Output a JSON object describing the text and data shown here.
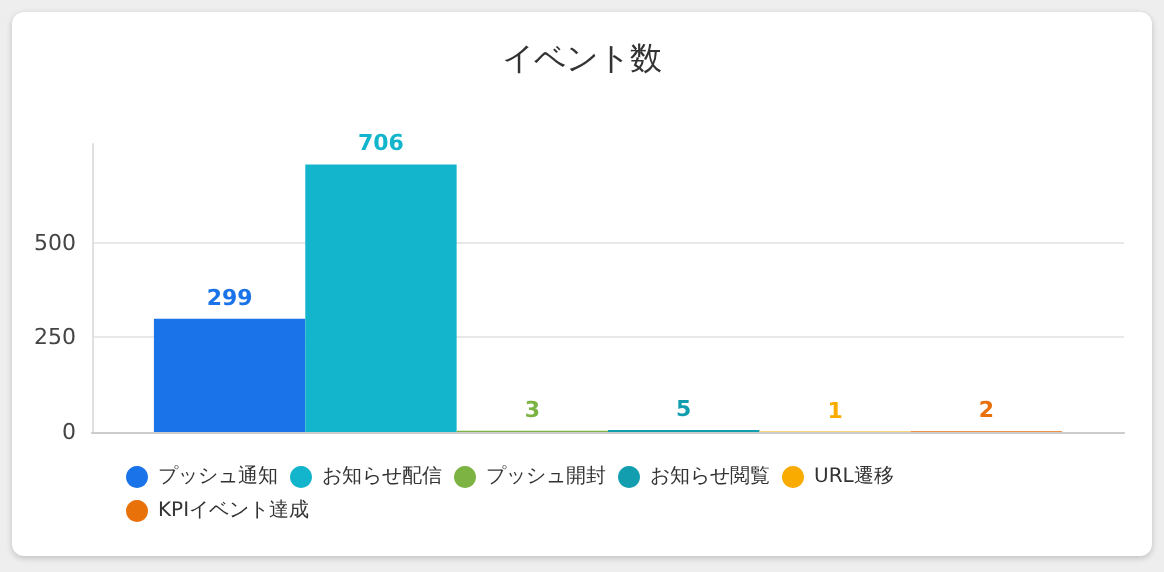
{
  "chart_data": {
    "type": "bar",
    "title": "イベント数",
    "categories": [
      null
    ],
    "series": [
      {
        "name": "プッシュ通知",
        "color": "#1a73e8",
        "values": [
          299
        ]
      },
      {
        "name": "お知らせ配信",
        "color": "#12b5cb",
        "values": [
          706
        ]
      },
      {
        "name": "プッシュ開封",
        "color": "#7cb342",
        "values": [
          3
        ]
      },
      {
        "name": "お知らせ閲覧",
        "color": "#129eaf",
        "values": [
          5
        ]
      },
      {
        "name": "URL遷移",
        "color": "#f9ab00",
        "values": [
          1
        ]
      },
      {
        "name": "KPIイベント達成",
        "color": "#e8710a",
        "values": [
          2
        ]
      }
    ],
    "ylim": [
      0,
      760
    ],
    "yticks": [
      0,
      250,
      500
    ],
    "grid": "y",
    "legend": "bottom",
    "data_labels": true
  }
}
